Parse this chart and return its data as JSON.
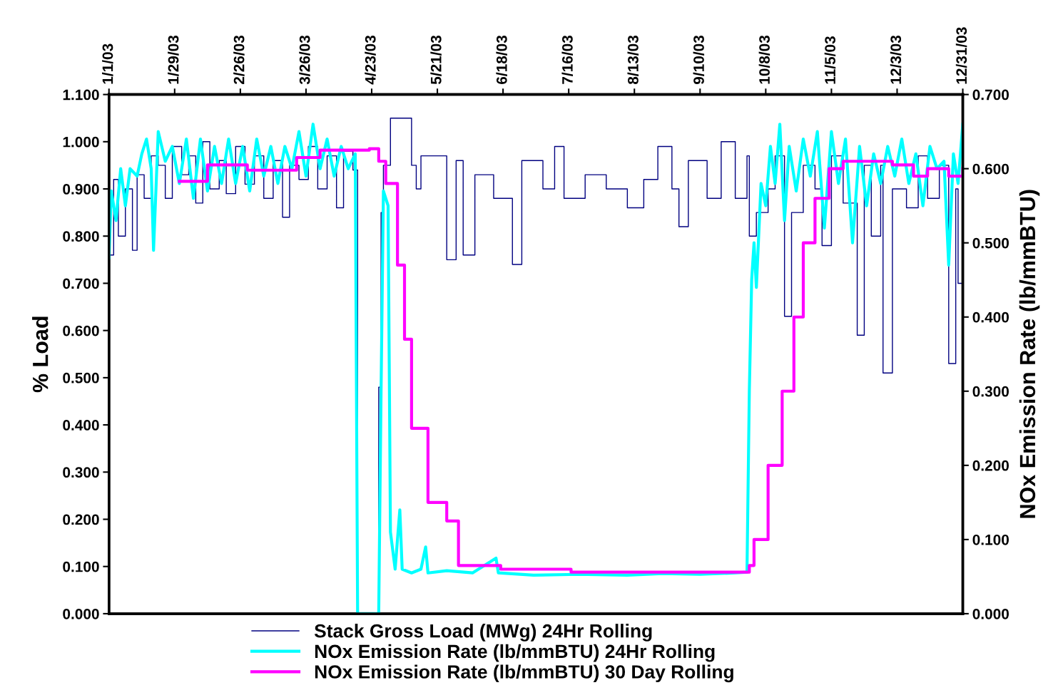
{
  "chart_data": {
    "type": "line",
    "ylabel": "% Load",
    "y2label": "NOx Emission Rate (lb/mmBTU)",
    "xlim": [
      "2003-01-01",
      "2003-12-31"
    ],
    "xticks": [
      {
        "value": "2003-01-01",
        "label": "1/1/03"
      },
      {
        "value": "2003-01-29",
        "label": "1/29/03"
      },
      {
        "value": "2003-02-26",
        "label": "2/26/03"
      },
      {
        "value": "2003-03-26",
        "label": "3/26/03"
      },
      {
        "value": "2003-04-23",
        "label": "4/23/03"
      },
      {
        "value": "2003-05-21",
        "label": "5/21/03"
      },
      {
        "value": "2003-06-18",
        "label": "6/18/03"
      },
      {
        "value": "2003-07-16",
        "label": "7/16/03"
      },
      {
        "value": "2003-08-13",
        "label": "8/13/03"
      },
      {
        "value": "2003-09-10",
        "label": "9/10/03"
      },
      {
        "value": "2003-10-08",
        "label": "10/8/03"
      },
      {
        "value": "2003-11-05",
        "label": "11/5/03"
      },
      {
        "value": "2003-12-03",
        "label": "12/3/03"
      },
      {
        "value": "2003-12-31",
        "label": "12/31/03"
      }
    ],
    "ylim": [
      0,
      1.1
    ],
    "yticks": [
      {
        "value": 0,
        "label": "0.000"
      },
      {
        "value": 0.1,
        "label": "0.100"
      },
      {
        "value": 0.2,
        "label": "0.200"
      },
      {
        "value": 0.3,
        "label": "0.300"
      },
      {
        "value": 0.4,
        "label": "0.400"
      },
      {
        "value": 0.5,
        "label": "0.500"
      },
      {
        "value": 0.6,
        "label": "0.600"
      },
      {
        "value": 0.7,
        "label": "0.700"
      },
      {
        "value": 0.8,
        "label": "0.800"
      },
      {
        "value": 0.9,
        "label": "0.900"
      },
      {
        "value": 1.0,
        "label": "1.000"
      },
      {
        "value": 1.1,
        "label": "1.100"
      }
    ],
    "y2lim": [
      0,
      0.7
    ],
    "y2ticks": [
      {
        "value": 0,
        "label": "0.000"
      },
      {
        "value": 0.1,
        "label": "0.100"
      },
      {
        "value": 0.2,
        "label": "0.200"
      },
      {
        "value": 0.3,
        "label": "0.300"
      },
      {
        "value": 0.4,
        "label": "0.400"
      },
      {
        "value": 0.5,
        "label": "0.500"
      },
      {
        "value": 0.6,
        "label": "0.600"
      },
      {
        "value": 0.7,
        "label": "0.700"
      }
    ],
    "grid": false,
    "legend": "bottom",
    "series": [
      {
        "name": "Stack Gross Load (MWg) 24Hr Rolling",
        "type": "step",
        "color": "#000080",
        "x": [
          "2003-01-01",
          "2003-01-03",
          "2003-01-05",
          "2003-01-08",
          "2003-01-11",
          "2003-01-13",
          "2003-01-16",
          "2003-01-19",
          "2003-01-22",
          "2003-01-25",
          "2003-01-28",
          "2003-02-01",
          "2003-02-04",
          "2003-02-07",
          "2003-02-10",
          "2003-02-13",
          "2003-02-17",
          "2003-02-20",
          "2003-02-24",
          "2003-02-28",
          "2003-03-04",
          "2003-03-08",
          "2003-03-12",
          "2003-03-16",
          "2003-03-19",
          "2003-03-23",
          "2003-03-27",
          "2003-03-31",
          "2003-04-04",
          "2003-04-08",
          "2003-04-11",
          "2003-04-15",
          "2003-04-17",
          "2003-04-26",
          "2003-04-27",
          "2003-04-28",
          "2003-05-01",
          "2003-05-08",
          "2003-05-10",
          "2003-05-12",
          "2003-05-14",
          "2003-05-25",
          "2003-05-29",
          "2003-06-01",
          "2003-06-06",
          "2003-06-14",
          "2003-06-22",
          "2003-06-26",
          "2003-07-05",
          "2003-07-10",
          "2003-07-14",
          "2003-07-23",
          "2003-08-01",
          "2003-08-10",
          "2003-08-17",
          "2003-08-23",
          "2003-08-29",
          "2003-09-01",
          "2003-09-05",
          "2003-09-13",
          "2003-09-19",
          "2003-09-25",
          "2003-09-30",
          "2003-10-01",
          "2003-10-04",
          "2003-10-09",
          "2003-10-12",
          "2003-10-16",
          "2003-10-19",
          "2003-10-24",
          "2003-10-29",
          "2003-11-01",
          "2003-11-05",
          "2003-11-10",
          "2003-11-16",
          "2003-11-19",
          "2003-11-22",
          "2003-11-26",
          "2003-11-27",
          "2003-12-01",
          "2003-12-07",
          "2003-12-12",
          "2003-12-16",
          "2003-12-21",
          "2003-12-25",
          "2003-12-28",
          "2003-12-29",
          "2003-12-31"
        ],
        "values": [
          0.76,
          0.92,
          0.8,
          0.9,
          0.77,
          0.93,
          0.88,
          0.97,
          0.95,
          0.88,
          0.99,
          0.93,
          0.97,
          0.87,
          1.0,
          0.9,
          0.96,
          0.89,
          0.99,
          0.91,
          0.97,
          0.88,
          0.96,
          0.84,
          0.95,
          0.92,
          0.99,
          0.9,
          0.97,
          0.86,
          0.98,
          0.94,
          0.0,
          0.48,
          0.85,
          0.95,
          1.05,
          1.05,
          0.95,
          0.9,
          0.97,
          0.75,
          0.96,
          0.76,
          0.93,
          0.88,
          0.74,
          0.96,
          0.9,
          0.99,
          0.88,
          0.93,
          0.9,
          0.86,
          0.92,
          0.99,
          0.9,
          0.82,
          0.96,
          0.88,
          1.0,
          0.88,
          0.97,
          0.8,
          0.85,
          0.9,
          0.97,
          0.63,
          0.85,
          0.95,
          0.9,
          0.78,
          0.97,
          0.87,
          0.59,
          0.95,
          0.8,
          0.95,
          0.51,
          0.9,
          0.86,
          0.97,
          0.88,
          0.95,
          0.53,
          0.9,
          0.7,
          0.95
        ]
      },
      {
        "name": "NOx Emission Rate (lb/mmBTU) 24Hr Rolling",
        "axis": "y2",
        "color": "#00ffff",
        "x": [
          "2003-01-01",
          "2003-01-02",
          "2003-01-04",
          "2003-01-06",
          "2003-01-08",
          "2003-01-10",
          "2003-01-13",
          "2003-01-15",
          "2003-01-17",
          "2003-01-19",
          "2003-01-20",
          "2003-01-22",
          "2003-01-25",
          "2003-01-28",
          "2003-01-31",
          "2003-02-03",
          "2003-02-06",
          "2003-02-09",
          "2003-02-12",
          "2003-02-15",
          "2003-02-18",
          "2003-02-21",
          "2003-02-24",
          "2003-02-27",
          "2003-03-02",
          "2003-03-05",
          "2003-03-08",
          "2003-03-11",
          "2003-03-14",
          "2003-03-17",
          "2003-03-20",
          "2003-03-23",
          "2003-03-26",
          "2003-03-29",
          "2003-04-01",
          "2003-04-04",
          "2003-04-07",
          "2003-04-10",
          "2003-04-13",
          "2003-04-16",
          "2003-04-17",
          "2003-04-26",
          "2003-04-27",
          "2003-04-28",
          "2003-04-30",
          "2003-05-01",
          "2003-05-03",
          "2003-05-05",
          "2003-05-06",
          "2003-05-10",
          "2003-05-14",
          "2003-05-16",
          "2003-05-17",
          "2003-05-25",
          "2003-06-05",
          "2003-06-15",
          "2003-06-16",
          "2003-07-01",
          "2003-07-20",
          "2003-08-10",
          "2003-08-25",
          "2003-09-10",
          "2003-09-25",
          "2003-09-30",
          "2003-10-01",
          "2003-10-02",
          "2003-10-03",
          "2003-10-04",
          "2003-10-06",
          "2003-10-08",
          "2003-10-10",
          "2003-10-12",
          "2003-10-14",
          "2003-10-16",
          "2003-10-18",
          "2003-10-21",
          "2003-10-24",
          "2003-10-27",
          "2003-10-30",
          "2003-11-02",
          "2003-11-05",
          "2003-11-08",
          "2003-11-11",
          "2003-11-14",
          "2003-11-17",
          "2003-11-20",
          "2003-11-23",
          "2003-11-26",
          "2003-11-29",
          "2003-12-02",
          "2003-12-05",
          "2003-12-08",
          "2003-12-11",
          "2003-12-14",
          "2003-12-17",
          "2003-12-20",
          "2003-12-23",
          "2003-12-25",
          "2003-12-27",
          "2003-12-29",
          "2003-12-31"
        ],
        "values": [
          0.48,
          0.57,
          0.53,
          0.6,
          0.55,
          0.6,
          0.59,
          0.62,
          0.64,
          0.6,
          0.49,
          0.65,
          0.61,
          0.63,
          0.58,
          0.64,
          0.56,
          0.64,
          0.57,
          0.63,
          0.58,
          0.64,
          0.58,
          0.63,
          0.57,
          0.64,
          0.59,
          0.63,
          0.58,
          0.63,
          0.6,
          0.65,
          0.59,
          0.66,
          0.6,
          0.64,
          0.59,
          0.63,
          0.6,
          0.62,
          0.0,
          0.0,
          0.3,
          0.57,
          0.55,
          0.11,
          0.06,
          0.14,
          0.06,
          0.055,
          0.06,
          0.09,
          0.055,
          0.058,
          0.055,
          0.075,
          0.055,
          0.052,
          0.053,
          0.052,
          0.054,
          0.053,
          0.055,
          0.056,
          0.3,
          0.45,
          0.5,
          0.44,
          0.58,
          0.55,
          0.63,
          0.58,
          0.66,
          0.53,
          0.63,
          0.57,
          0.64,
          0.59,
          0.65,
          0.52,
          0.65,
          0.58,
          0.64,
          0.5,
          0.63,
          0.55,
          0.62,
          0.58,
          0.63,
          0.59,
          0.64,
          0.58,
          0.62,
          0.55,
          0.63,
          0.6,
          0.61,
          0.47,
          0.62,
          0.58,
          0.66
        ]
      },
      {
        "name": "NOx Emission Rate (lb/mmBTU) 30 Day Rolling",
        "type": "step",
        "axis": "y2",
        "color": "#ff00ff",
        "x": [
          "2003-01-31",
          "2003-02-12",
          "2003-03-01",
          "2003-03-22",
          "2003-04-01",
          "2003-04-22",
          "2003-04-26",
          "2003-04-29",
          "2003-05-04",
          "2003-05-07",
          "2003-05-10",
          "2003-05-17",
          "2003-05-25",
          "2003-05-30",
          "2003-06-17",
          "2003-07-17",
          "2003-09-28",
          "2003-10-01",
          "2003-10-03",
          "2003-10-09",
          "2003-10-15",
          "2003-10-20",
          "2003-10-24",
          "2003-10-29",
          "2003-11-04",
          "2003-11-10",
          "2003-11-16",
          "2003-12-01",
          "2003-12-10",
          "2003-12-16",
          "2003-12-25",
          "2003-12-31"
        ],
        "values": [
          0.583,
          0.605,
          0.598,
          0.615,
          0.625,
          0.627,
          0.61,
          0.58,
          0.47,
          0.37,
          0.25,
          0.15,
          0.125,
          0.065,
          0.06,
          0.056,
          0.056,
          0.065,
          0.1,
          0.2,
          0.3,
          0.4,
          0.5,
          0.56,
          0.6,
          0.61,
          0.61,
          0.605,
          0.59,
          0.6,
          0.59,
          0.6
        ]
      }
    ]
  }
}
